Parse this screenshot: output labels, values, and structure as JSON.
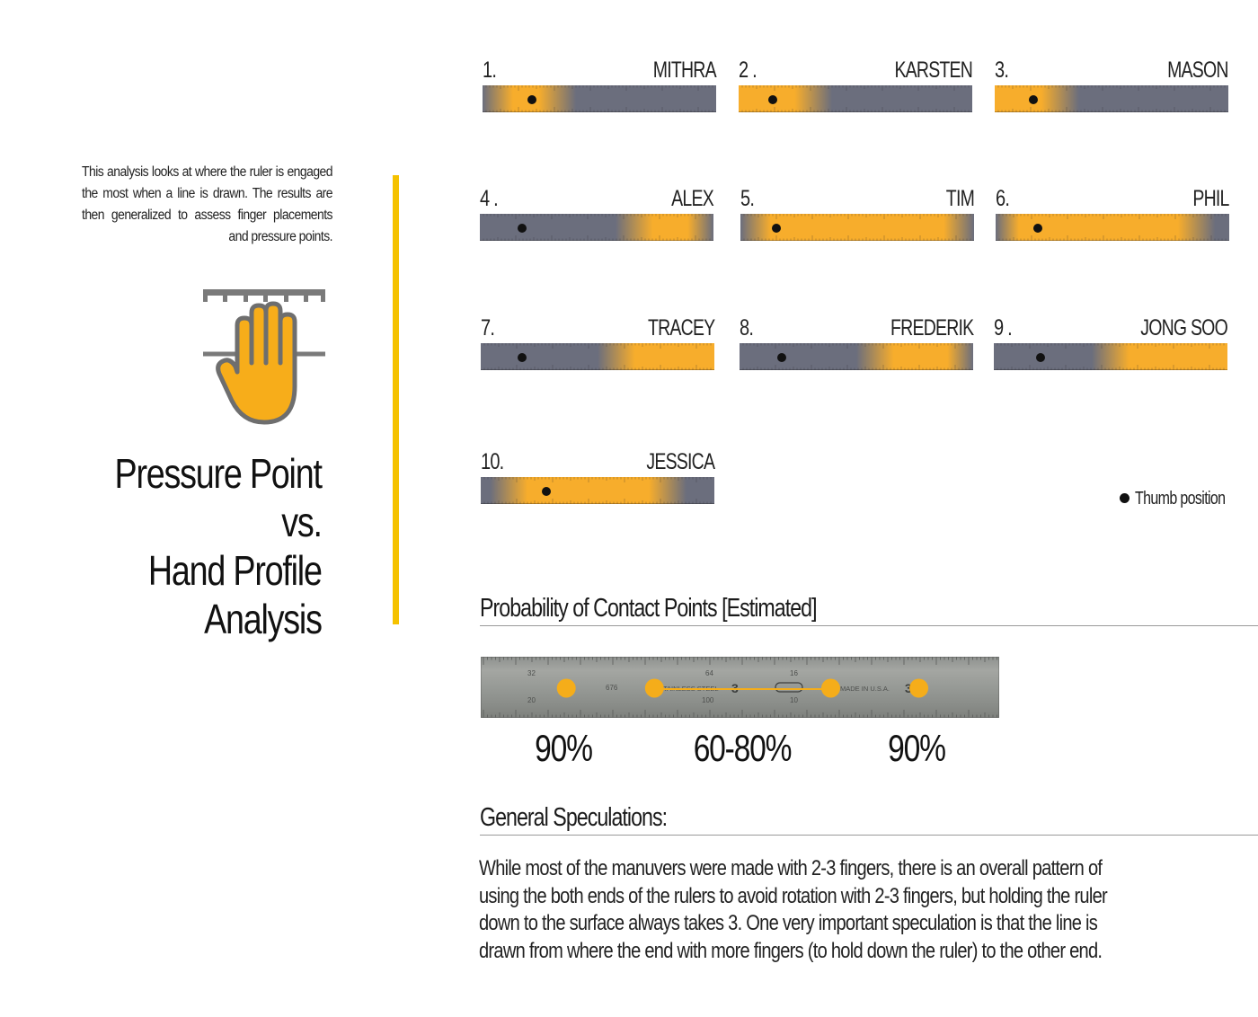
{
  "intro": {
    "text": "This analysis looks at where the ruler is engaged the most when a line is drawn. The results are then generalized to assess finger placements and pressure points."
  },
  "title": {
    "line1": "Pressure Point",
    "line2": "vs.",
    "line3": "Hand Profile",
    "line4": "Analysis"
  },
  "colors": {
    "accent": "#f5c200",
    "ruler_gray": "#6b6e7d",
    "ruler_yellow": "#f7ad2c",
    "dot": "#f5ad1a"
  },
  "profiles": [
    {
      "number": "1.",
      "name": "MITHRA",
      "thumb": 0.21,
      "hot_start": 0.05,
      "hot_end": 0.32
    },
    {
      "number": "2 .",
      "name": "KARSTEN",
      "thumb": 0.145,
      "hot_start": 0.0,
      "hot_end": 0.32
    },
    {
      "number": "3.",
      "name": "MASON",
      "thumb": 0.165,
      "hot_start": 0.0,
      "hot_end": 0.28
    },
    {
      "number": "4 .",
      "name": "ALEX",
      "thumb": 0.18,
      "hot_start": 0.66,
      "hot_end": 0.97
    },
    {
      "number": "5.",
      "name": "TIM",
      "thumb": 0.155,
      "hot_start": 0.05,
      "hot_end": 0.95
    },
    {
      "number": "6.",
      "name": "PHIL",
      "thumb": 0.18,
      "hot_start": 0.02,
      "hot_end": 0.86
    },
    {
      "number": "7.",
      "name": "TRACEY",
      "thumb": 0.175,
      "hot_start": 0.58,
      "hot_end": 0.99
    },
    {
      "number": "8.",
      "name": "FREDERIK",
      "thumb": 0.18,
      "hot_start": 0.58,
      "hot_end": 0.97
    },
    {
      "number": "9 .",
      "name": "JONG SOO",
      "thumb": 0.2,
      "hot_start": 0.5,
      "hot_end": 0.99
    },
    {
      "number": "10.",
      "name": "JESSICA",
      "thumb": 0.28,
      "hot_start": 0.12,
      "hot_end": 0.8
    }
  ],
  "legend": {
    "label": "Thumb position"
  },
  "probability": {
    "heading": "Probability of Contact Points [Estimated]",
    "contact_points": [
      0.165,
      0.335,
      0.675,
      0.845
    ],
    "connector": {
      "from": 0.335,
      "to": 0.675
    },
    "ruler_markings": [
      "32",
      "64",
      "16",
      "20",
      "676",
      "100",
      "10",
      "3",
      "3",
      "STAINLESS STEEL",
      "MADE IN U.S.A."
    ],
    "labels": [
      {
        "text": "90%",
        "at": 0.16
      },
      {
        "text": "60-80%",
        "at": 0.505
      },
      {
        "text": "90%",
        "at": 0.84
      }
    ]
  },
  "speculations": {
    "heading": "General Speculations:",
    "body": "While most of the manuvers were made with 2-3 fingers, there is an overall pattern of using the both ends of the rulers to avoid rotation with 2-3 fingers, but holding the ruler down to the surface always takes 3. One very important speculation is that the line is drawn from where the end with more fingers (to hold down the ruler) to the other end."
  }
}
